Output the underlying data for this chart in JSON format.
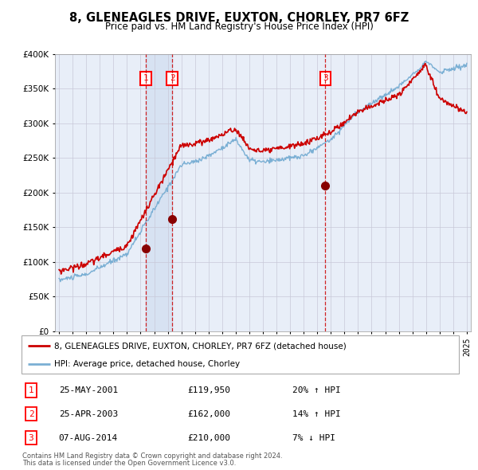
{
  "title": "8, GLENEAGLES DRIVE, EUXTON, CHORLEY, PR7 6FZ",
  "subtitle": "Price paid vs. HM Land Registry's House Price Index (HPI)",
  "legend_property": "8, GLENEAGLES DRIVE, EUXTON, CHORLEY, PR7 6FZ (detached house)",
  "legend_hpi": "HPI: Average price, detached house, Chorley",
  "sales": [
    {
      "num": 1,
      "date": "25-MAY-2001",
      "price": 119950,
      "year": 2001.39,
      "hpi_rel": "20% ↑ HPI"
    },
    {
      "num": 2,
      "date": "25-APR-2003",
      "price": 162000,
      "year": 2003.32,
      "hpi_rel": "14% ↑ HPI"
    },
    {
      "num": 3,
      "date": "07-AUG-2014",
      "price": 210000,
      "year": 2014.6,
      "hpi_rel": "7% ↓ HPI"
    }
  ],
  "footnote1": "Contains HM Land Registry data © Crown copyright and database right 2024.",
  "footnote2": "This data is licensed under the Open Government Licence v3.0.",
  "property_color": "#cc0000",
  "hpi_color": "#7aafd4",
  "shade_color": "#c8d8ee",
  "ylim": [
    0,
    400000
  ],
  "xlim": [
    1994.7,
    2025.3
  ],
  "yticks": [
    0,
    50000,
    100000,
    150000,
    200000,
    250000,
    300000,
    350000,
    400000
  ],
  "xticks": [
    1995,
    1996,
    1997,
    1998,
    1999,
    2000,
    2001,
    2002,
    2003,
    2004,
    2005,
    2006,
    2007,
    2008,
    2009,
    2010,
    2011,
    2012,
    2013,
    2014,
    2015,
    2016,
    2017,
    2018,
    2019,
    2020,
    2021,
    2022,
    2023,
    2024,
    2025
  ],
  "background_color": "#ffffff",
  "chart_bg": "#e8eef8",
  "grid_color": "#c8c8d8"
}
